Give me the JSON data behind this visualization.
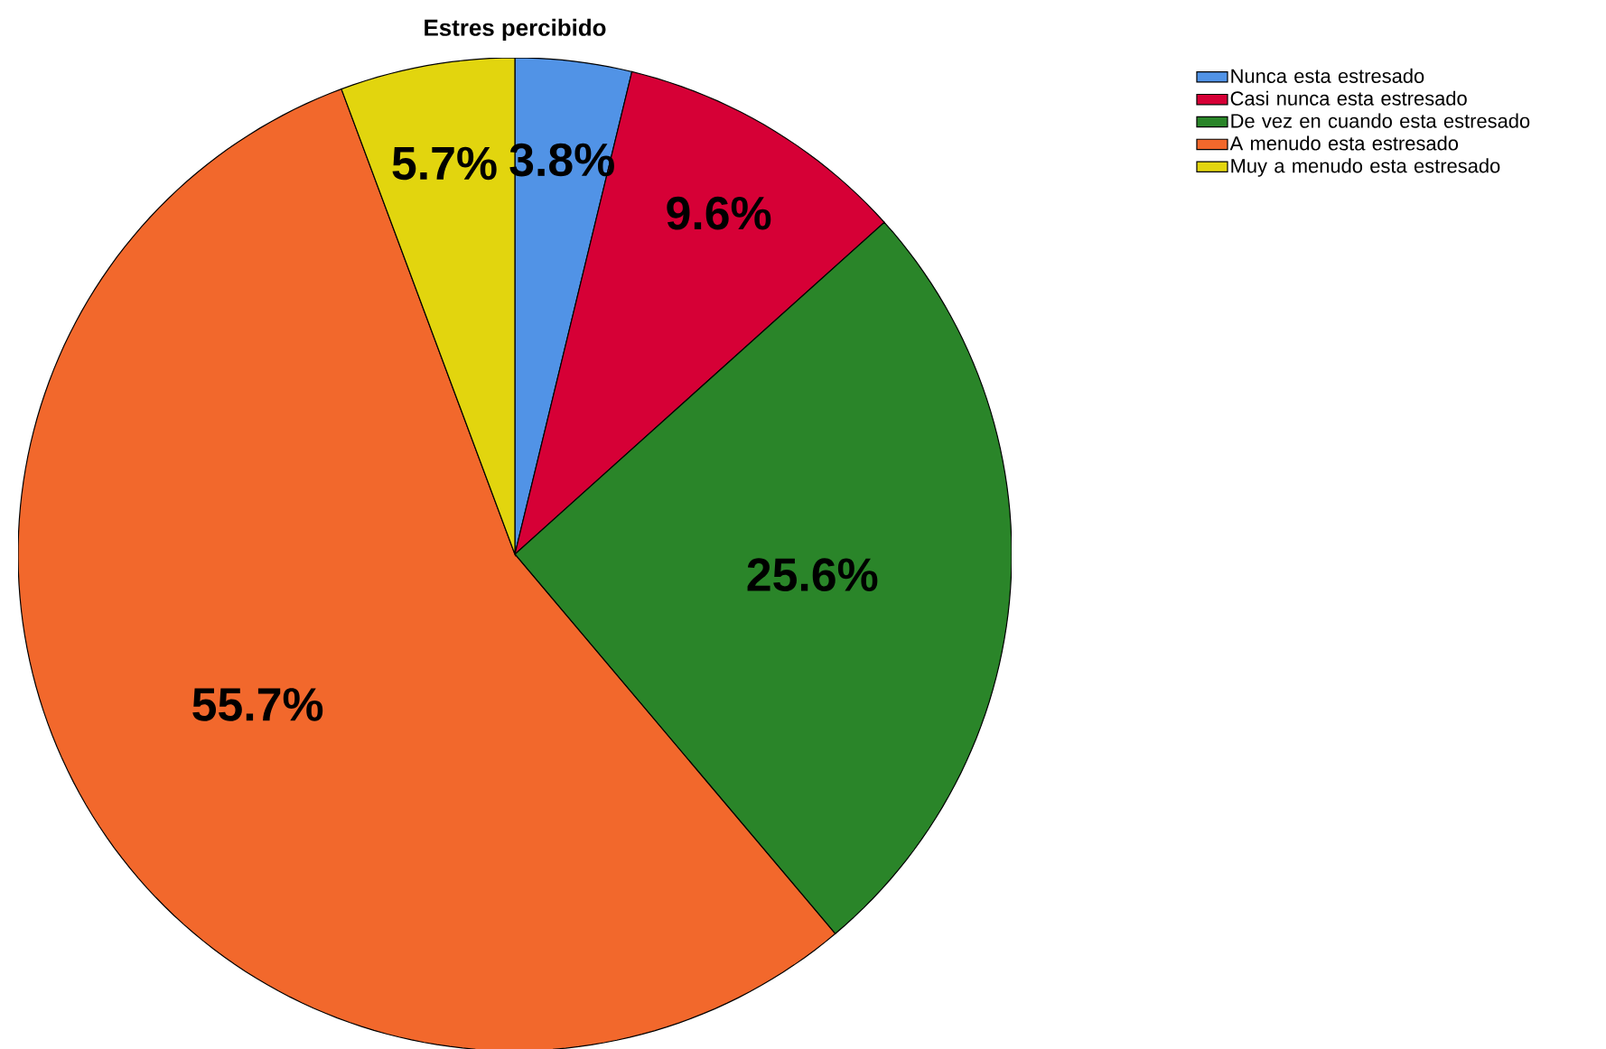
{
  "chart_data": {
    "type": "pie",
    "title": "Estres percibido",
    "categories": [
      "Nunca esta estresado",
      "Casi nunca esta estresado",
      "De vez en cuando esta estresado",
      "A menudo esta estresado",
      "Muy a menudo esta estresado"
    ],
    "values": [
      3.8,
      9.6,
      25.6,
      55.7,
      5.7
    ],
    "colors": [
      "#5193e6",
      "#d60036",
      "#2a8529",
      "#f2682c",
      "#e2d50e"
    ],
    "value_labels": [
      "3.8%",
      "9.6%",
      "25.6%",
      "55.7%",
      "5.7%"
    ],
    "legend": "top right"
  }
}
